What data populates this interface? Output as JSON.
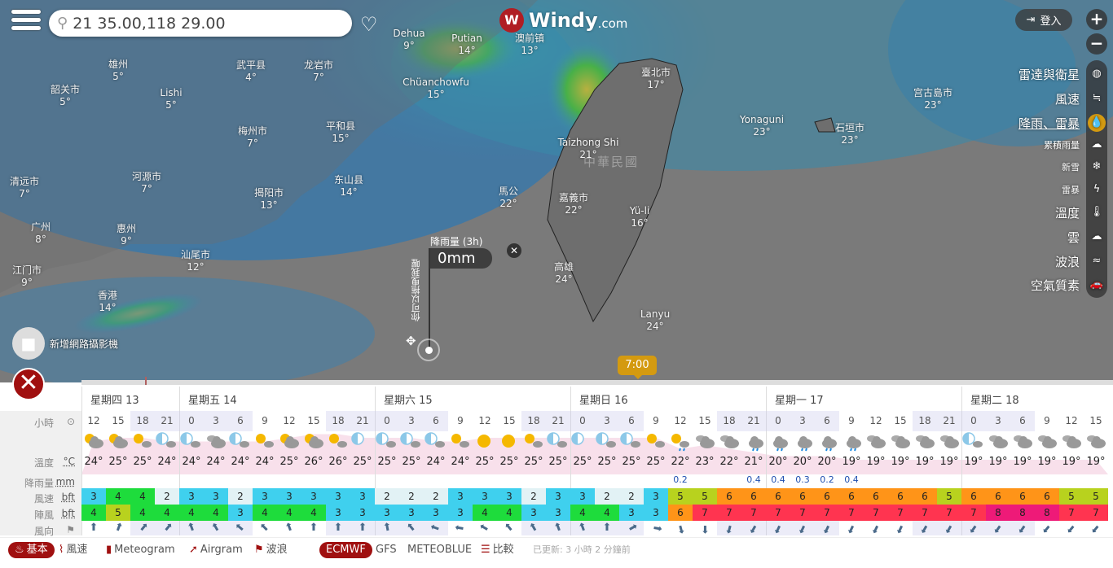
{
  "header": {
    "menu_icon": "hamburger-icon",
    "search_value": "21 35.00,118 29.00",
    "search_icon": "magnifier-icon",
    "favorite_icon": "heart-icon",
    "logo_text": "Windy",
    "logo_suffix": ".com",
    "login_label": "登入",
    "zoom_in": "+",
    "zoom_out": "−"
  },
  "layers": [
    {
      "label": "雷達與衛星",
      "icon": "globe-icon",
      "glyph": "◍"
    },
    {
      "label": "風速",
      "icon": "wind-icon",
      "glyph": "≒"
    },
    {
      "label": "降雨、雷暴",
      "icon": "raindrop-icon",
      "glyph": "💧",
      "selected": true
    },
    {
      "label": "累積雨量",
      "icon": "rain-cloud-icon",
      "glyph": "☁",
      "small": true
    },
    {
      "label": "新雪",
      "icon": "snowflake-icon",
      "glyph": "❄",
      "small": true
    },
    {
      "label": "雷暴",
      "icon": "thunder-icon",
      "glyph": "ϟ",
      "small": true
    },
    {
      "label": "溫度",
      "icon": "thermometer-icon",
      "glyph": "🌡"
    },
    {
      "label": "雲",
      "icon": "cloud-icon",
      "glyph": "☁"
    },
    {
      "label": "波浪",
      "icon": "waves-icon",
      "glyph": "≈"
    },
    {
      "label": "空氣質素",
      "icon": "car-icon",
      "glyph": "🚗"
    }
  ],
  "map": {
    "country_label": "中華民國",
    "places": [
      {
        "name": "雄州",
        "temp": "5°"
      },
      {
        "name": "韶关市",
        "temp": "5°"
      },
      {
        "name": "Lishi",
        "temp": "5°"
      },
      {
        "name": "武平县",
        "temp": "4°"
      },
      {
        "name": "龙岩市",
        "temp": "7°"
      },
      {
        "name": "Dehua",
        "temp": "9°"
      },
      {
        "name": "Putian",
        "temp": "14°"
      },
      {
        "name": "澳前镇",
        "temp": "13°"
      },
      {
        "name": "Chüanchowfu",
        "temp": "15°"
      },
      {
        "name": "臺北市",
        "temp": "17°"
      },
      {
        "name": "宫古島市",
        "temp": "23°"
      },
      {
        "name": "Yonaguni",
        "temp": "23°"
      },
      {
        "name": "石垣市",
        "temp": "23°"
      },
      {
        "name": "Taizhong Shi",
        "temp": "21°"
      },
      {
        "name": "梅州市",
        "temp": "7°"
      },
      {
        "name": "平和县",
        "temp": "15°"
      },
      {
        "name": "清远市",
        "temp": "7°"
      },
      {
        "name": "河源市",
        "temp": "7°"
      },
      {
        "name": "揭阳市",
        "temp": "13°"
      },
      {
        "name": "东山县",
        "temp": "14°"
      },
      {
        "name": "馬公",
        "temp": "22°"
      },
      {
        "name": "嘉義市",
        "temp": "22°"
      },
      {
        "name": "Yü-li",
        "temp": "16°"
      },
      {
        "name": "广州",
        "temp": "8°"
      },
      {
        "name": "惠州",
        "temp": "9°"
      },
      {
        "name": "汕尾市",
        "temp": "12°"
      },
      {
        "name": "江门市",
        "temp": "9°"
      },
      {
        "name": "香港",
        "temp": "14°"
      },
      {
        "name": "高雄",
        "temp": "24°"
      },
      {
        "name": "Lanyu",
        "temp": "24°"
      }
    ],
    "picker": {
      "title": "降雨量 (3h)",
      "value": "0mm",
      "hint": "你可以拖曳我喔",
      "close": "✕",
      "move_icon": "✥"
    },
    "webcam_label": "新增網路攝影機",
    "time_bubble": "7:00"
  },
  "forecast": {
    "row_labels": {
      "hour": "小時",
      "temp": "溫度",
      "temp_unit": "°C",
      "rain": "降雨量",
      "rain_unit": "mm",
      "wind": "風速",
      "wind_unit": "bft",
      "gust": "陣風",
      "gust_unit": "bft",
      "dir": "風向"
    },
    "days": [
      {
        "label": "星期四 13",
        "hours": [
          "12",
          "15",
          "18",
          "21"
        ]
      },
      {
        "label": "星期五 14",
        "hours": [
          "0",
          "3",
          "6",
          "9",
          "12",
          "15",
          "18",
          "21"
        ]
      },
      {
        "label": "星期六 15",
        "hours": [
          "0",
          "3",
          "6",
          "9",
          "12",
          "15",
          "18",
          "21"
        ]
      },
      {
        "label": "星期日 16",
        "hours": [
          "0",
          "3",
          "6",
          "9",
          "12",
          "15",
          "18",
          "21"
        ]
      },
      {
        "label": "星期一 17",
        "hours": [
          "0",
          "3",
          "6",
          "9",
          "12",
          "15",
          "18",
          "21"
        ]
      },
      {
        "label": "星期二 18",
        "hours": [
          "0",
          "3",
          "6",
          "9",
          "12",
          "15"
        ]
      }
    ],
    "icons": [
      "sun-behind-cloud",
      "sun-behind-cloud",
      "sun-small-cloud",
      "moon-cloud",
      "moon-cloud",
      "clouds",
      "moon-cloud",
      "sun-small-cloud",
      "sun-behind-cloud",
      "sun-behind-cloud",
      "sun-small-cloud",
      "moon",
      "moon-cloud",
      "moon-cloud",
      "moon-cloud",
      "sun-small-cloud",
      "sun",
      "sun",
      "sun-small-cloud",
      "moon-cloud",
      "moon",
      "moon-cloud",
      "moon-cloud",
      "sun-small-cloud",
      "sun-rain",
      "clouds",
      "clouds",
      "cloud-rain",
      "cloud-rain",
      "cloud-rain",
      "cloud-rain",
      "cloud-rain",
      "clouds",
      "clouds",
      "clouds",
      "clouds",
      "moon-cloud",
      "clouds",
      "clouds",
      "clouds",
      "clouds",
      "clouds"
    ],
    "temps": [
      "24°",
      "25°",
      "25°",
      "24°",
      "24°",
      "24°",
      "24°",
      "24°",
      "25°",
      "26°",
      "26°",
      "25°",
      "25°",
      "25°",
      "24°",
      "24°",
      "25°",
      "25°",
      "25°",
      "25°",
      "25°",
      "25°",
      "25°",
      "25°",
      "22°",
      "23°",
      "22°",
      "21°",
      "20°",
      "20°",
      "20°",
      "19°",
      "19°",
      "19°",
      "19°",
      "19°",
      "19°",
      "19°",
      "19°",
      "19°",
      "19°",
      "19°"
    ],
    "rain": [
      "",
      "",
      "",
      "",
      "",
      "",
      "",
      "",
      "",
      "",
      "",
      "",
      "",
      "",
      "",
      "",
      "",
      "",
      "",
      "",
      "",
      "",
      "",
      "",
      "0.2",
      "",
      "",
      "0.4",
      "0.4",
      "0.3",
      "0.2",
      "0.4",
      "",
      "",
      "",
      "",
      "",
      "",
      "",
      "",
      "",
      ""
    ],
    "wind": [
      3,
      4,
      4,
      2,
      3,
      3,
      2,
      3,
      3,
      3,
      3,
      3,
      2,
      2,
      2,
      3,
      3,
      3,
      2,
      3,
      3,
      2,
      2,
      3,
      5,
      5,
      6,
      6,
      6,
      6,
      6,
      6,
      6,
      6,
      6,
      5,
      6,
      6,
      6,
      6,
      5,
      5
    ],
    "gust": [
      4,
      5,
      4,
      4,
      4,
      4,
      3,
      4,
      4,
      4,
      3,
      3,
      3,
      3,
      3,
      3,
      4,
      4,
      3,
      3,
      4,
      4,
      3,
      3,
      6,
      7,
      7,
      7,
      7,
      7,
      7,
      7,
      7,
      7,
      7,
      7,
      7,
      8,
      8,
      8,
      7,
      7
    ],
    "wind_dir_deg": [
      0,
      20,
      40,
      40,
      -20,
      -30,
      -50,
      -45,
      -20,
      0,
      0,
      0,
      -10,
      -40,
      -70,
      -80,
      -60,
      -40,
      -30,
      -20,
      -20,
      0,
      60,
      100,
      165,
      180,
      195,
      210,
      205,
      205,
      205,
      205,
      205,
      205,
      210,
      210,
      215,
      215,
      215,
      220,
      220,
      220
    ],
    "colors": {
      "2": "#e2f2f5",
      "3": "#3fd0ee",
      "4": "#1edc3c",
      "5": "#b8d21e",
      "6": "#ff9418",
      "7": "#ff3450",
      "8": "#ee1a78"
    }
  },
  "bottom": {
    "tabs": [
      {
        "label": "基本",
        "icon": "basic-icon",
        "active": true
      },
      {
        "label": "風速",
        "icon": "wind-icon"
      },
      {
        "label": "Meteogram",
        "icon": "bar-chart-icon"
      },
      {
        "label": "Airgram",
        "icon": "airgram-icon"
      },
      {
        "label": "波浪",
        "icon": "wave-icon"
      }
    ],
    "models": [
      {
        "label": "ECMWF",
        "active": true
      },
      {
        "label": "GFS"
      },
      {
        "label": "METEOBLUE"
      },
      {
        "label": "比較",
        "icon": "compare-icon"
      }
    ],
    "updated": "已更新: 3 小時 2 分鐘前"
  }
}
